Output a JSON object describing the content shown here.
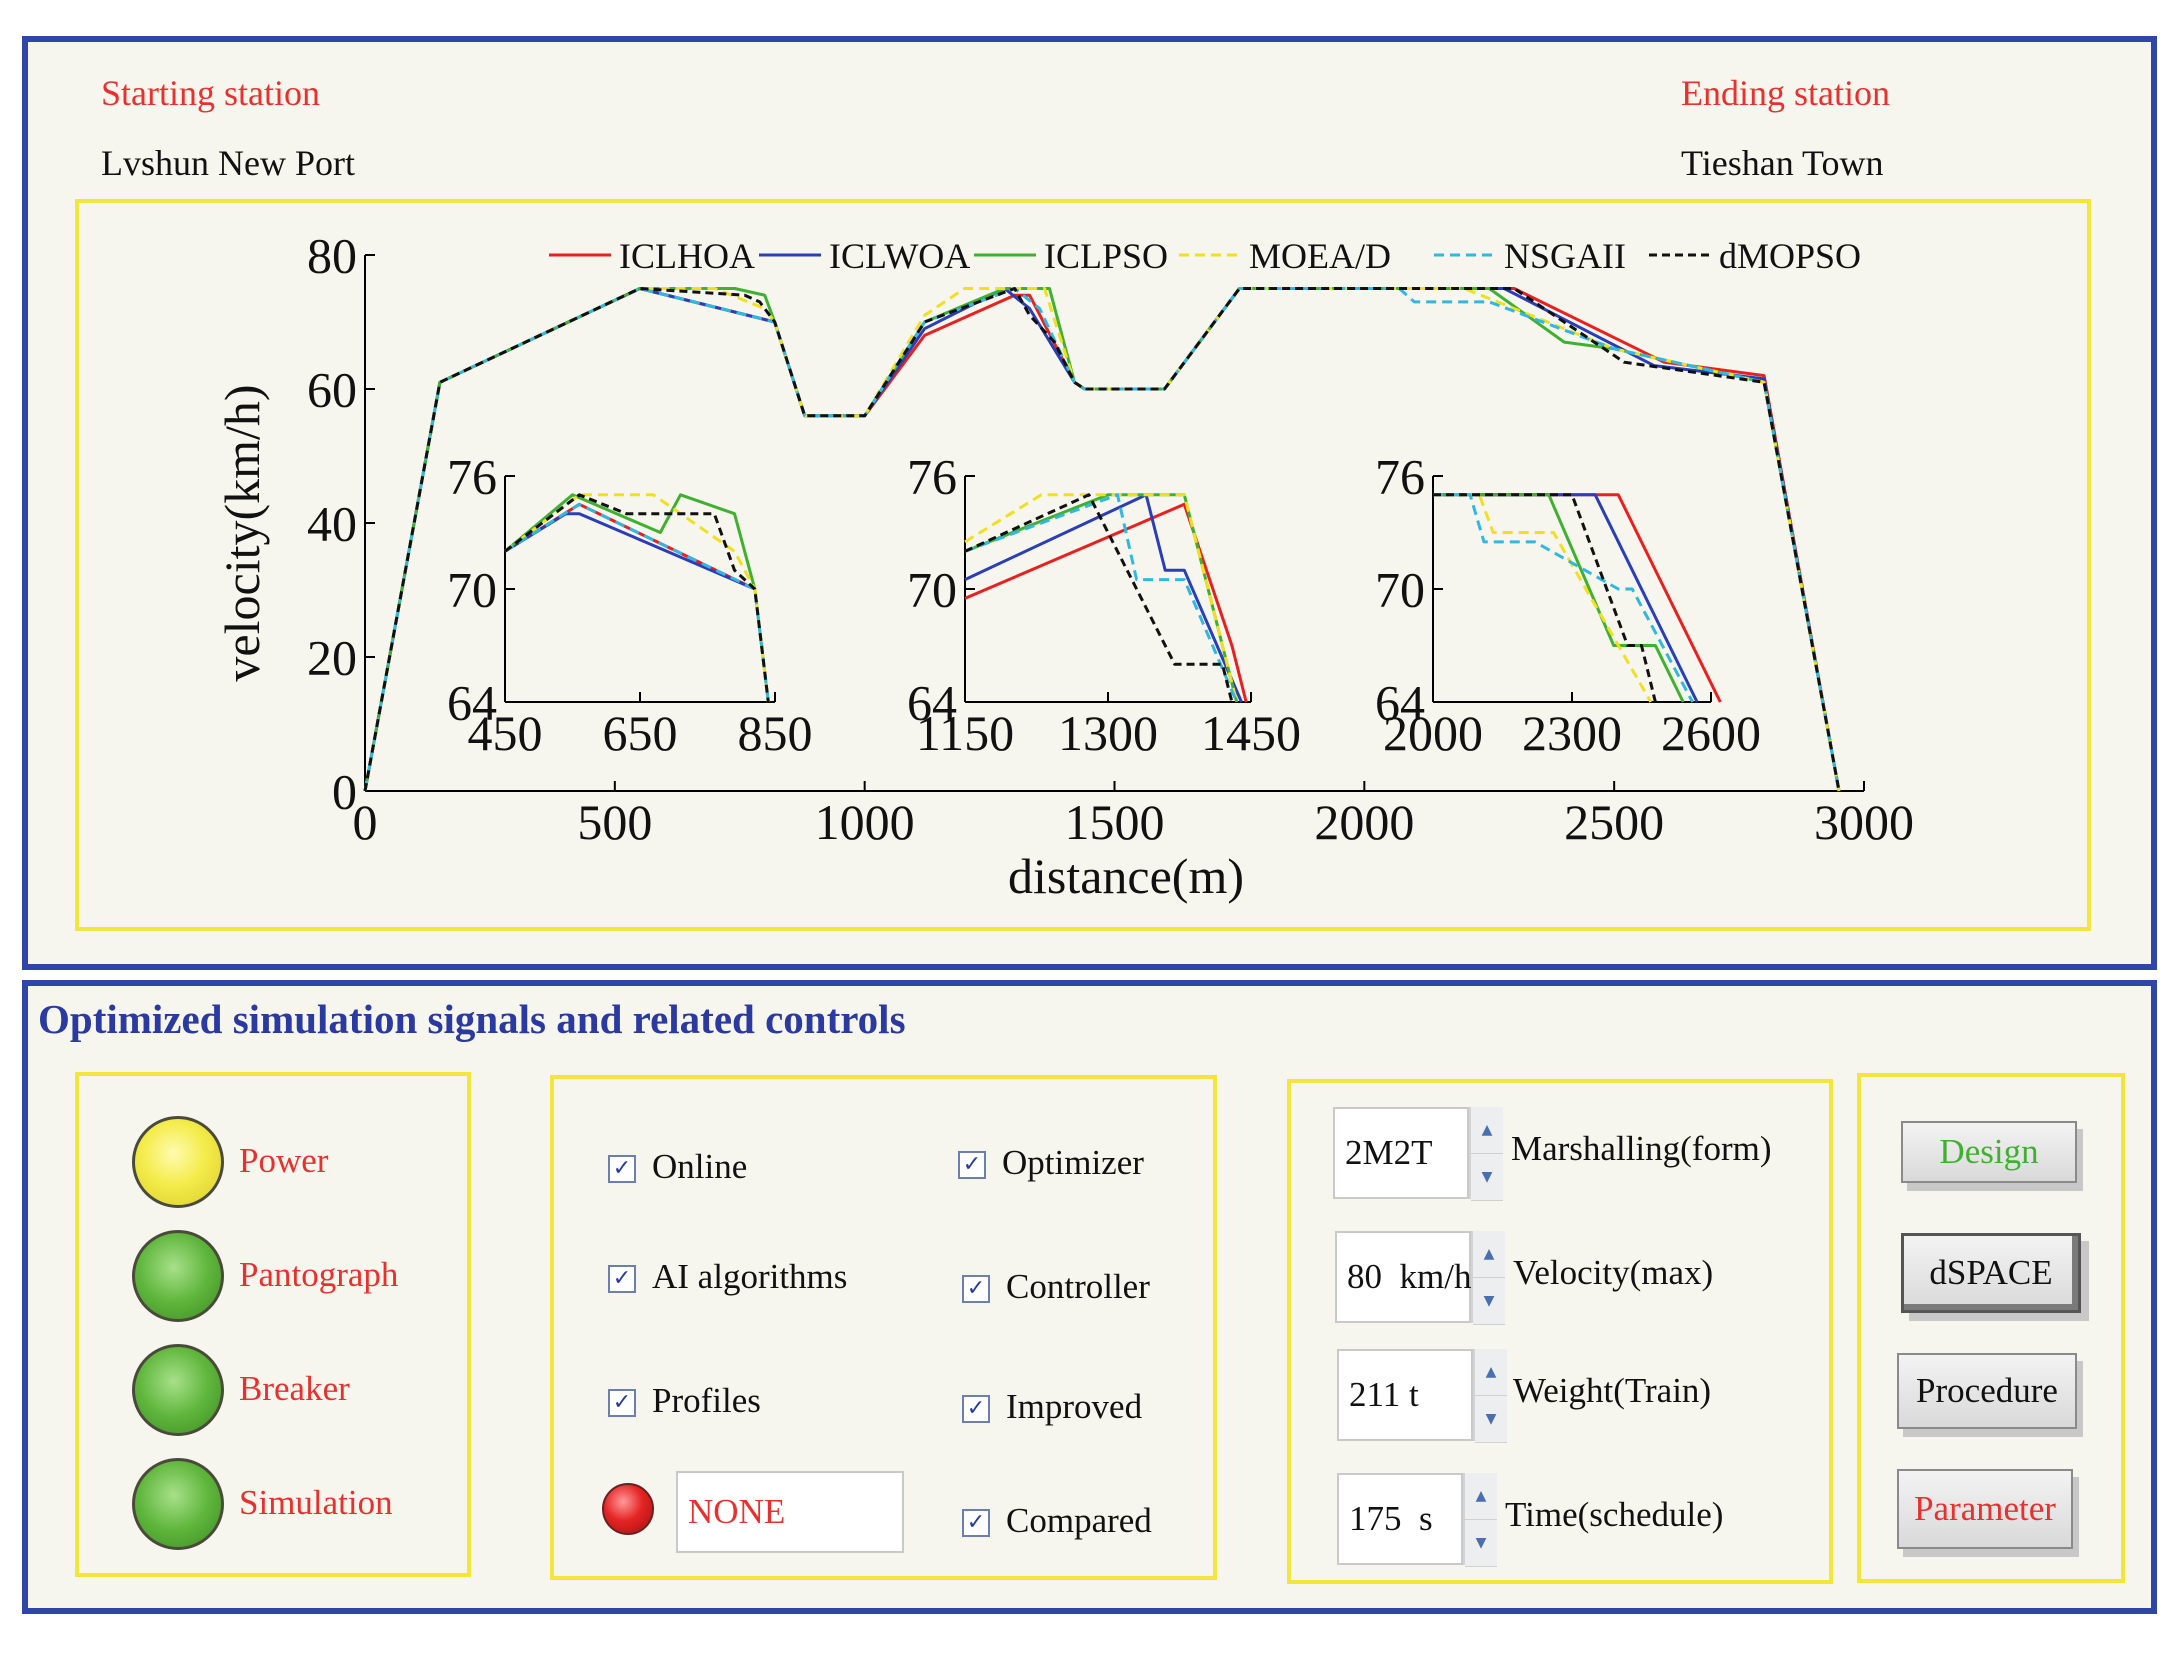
{
  "route": {
    "start_label": "Starting station",
    "start_value": "Lvshun New Port",
    "end_label": "Ending station",
    "end_value": "Tieshan Town"
  },
  "colors": {
    "ICLHOA": "#e82020",
    "ICLWOA": "#2a3eb8",
    "ICLPSO": "#40b030",
    "MOEA/D": "#f0e020",
    "NSGAII": "#30b8e0",
    "dMOPSO": "#111111"
  },
  "chart_data": [
    {
      "type": "line",
      "xlabel": "distance(m)",
      "ylabel": "velocity(km/h)",
      "xlim": [
        0,
        3000
      ],
      "ylim": [
        0,
        80
      ],
      "xticks": [
        "0",
        "500",
        "1000",
        "1500",
        "2000",
        "2500",
        "3000"
      ],
      "yticks": [
        "0",
        "20",
        "40",
        "60",
        "80"
      ],
      "legend": [
        "ICLHOA",
        "ICLWOA",
        "ICLPSO",
        "MOEA/D",
        "NSGAII",
        "dMOPSO"
      ],
      "legend_position": "top",
      "series": [
        {
          "name": "ICLHOA",
          "x": [
            0,
            150,
            550,
            820,
            880,
            1000,
            1120,
            1300,
            1330,
            1420,
            1440,
            1500,
            1600,
            1650,
            1750,
            2300,
            2600,
            2800,
            2950
          ],
          "y": [
            0,
            61,
            75,
            70,
            56,
            56,
            68,
            74,
            74,
            61,
            60,
            60,
            60,
            65,
            75,
            75,
            64,
            62,
            0
          ]
        },
        {
          "name": "ICLWOA",
          "x": [
            0,
            150,
            550,
            820,
            880,
            1000,
            1120,
            1280,
            1330,
            1420,
            1440,
            1500,
            1600,
            1650,
            1750,
            2280,
            2580,
            2800,
            2950
          ],
          "y": [
            0,
            61,
            75,
            70,
            56,
            56,
            69,
            75,
            72,
            61,
            60,
            60,
            60,
            65,
            75,
            75,
            63.5,
            61.5,
            0
          ]
        },
        {
          "name": "ICLPSO",
          "x": [
            0,
            150,
            550,
            740,
            800,
            820,
            880,
            1000,
            1120,
            1280,
            1370,
            1420,
            1440,
            1500,
            1600,
            1650,
            1750,
            2250,
            2400,
            2500,
            2800,
            2950
          ],
          "y": [
            0,
            61,
            75,
            75,
            74,
            70,
            56,
            56,
            70,
            75,
            75,
            61,
            60,
            60,
            60,
            65,
            75,
            75,
            67,
            66,
            61,
            0
          ]
        },
        {
          "name": "MOEA/D",
          "x": [
            0,
            150,
            550,
            700,
            800,
            820,
            880,
            1000,
            1120,
            1200,
            1360,
            1420,
            1440,
            1500,
            1600,
            1650,
            1750,
            2200,
            2500,
            2800,
            2950
          ],
          "y": [
            0,
            61,
            75,
            75,
            72,
            70,
            56,
            56,
            71,
            75,
            75,
            61,
            60,
            60,
            60,
            65,
            75,
            75,
            66,
            61,
            0
          ]
        },
        {
          "name": "NSGAII",
          "x": [
            0,
            150,
            550,
            820,
            880,
            1000,
            1120,
            1300,
            1350,
            1420,
            1440,
            1500,
            1600,
            1650,
            1750,
            2070,
            2100,
            2250,
            2500,
            2800,
            2950
          ],
          "y": [
            0,
            61,
            75,
            70,
            56,
            56,
            70,
            75,
            72,
            61,
            60,
            60,
            60,
            65,
            75,
            75,
            73,
            73,
            66,
            61,
            0
          ]
        },
        {
          "name": "dMOPSO",
          "x": [
            0,
            150,
            550,
            760,
            790,
            820,
            880,
            1000,
            1120,
            1300,
            1330,
            1380,
            1420,
            1440,
            1500,
            1600,
            1650,
            1750,
            2300,
            2520,
            2800,
            2950
          ],
          "y": [
            0,
            61,
            75,
            74,
            73,
            70,
            56,
            56,
            70,
            75,
            71,
            67,
            61,
            60,
            60,
            60,
            65,
            75,
            75,
            64,
            61,
            0
          ]
        }
      ]
    },
    {
      "type": "line",
      "inset": true,
      "xlim": [
        450,
        850
      ],
      "ylim": [
        64,
        76
      ],
      "xticks": [
        "450",
        "650",
        "850"
      ],
      "yticks": [
        "64",
        "70",
        "76"
      ],
      "series": [
        {
          "name": "ICLHOA",
          "x": [
            450,
            560,
            820
          ],
          "y": [
            72,
            74.5,
            70
          ]
        },
        {
          "name": "ICLWOA",
          "x": [
            450,
            540,
            560,
            820
          ],
          "y": [
            72,
            74,
            74,
            70
          ]
        },
        {
          "name": "ICLPSO",
          "x": [
            450,
            550,
            680,
            710,
            790,
            820,
            840
          ],
          "y": [
            72,
            75,
            73,
            75,
            74,
            70,
            64
          ]
        },
        {
          "name": "MOEA/D",
          "x": [
            450,
            560,
            670,
            790,
            820,
            840
          ],
          "y": [
            72,
            75,
            75,
            72,
            70,
            64
          ]
        },
        {
          "name": "NSGAII",
          "x": [
            450,
            560,
            820,
            840
          ],
          "y": [
            72,
            74.5,
            70,
            64
          ]
        },
        {
          "name": "dMOPSO",
          "x": [
            450,
            560,
            630,
            760,
            790,
            820,
            840
          ],
          "y": [
            72,
            75,
            74,
            74,
            71,
            70,
            64
          ]
        }
      ]
    },
    {
      "type": "line",
      "inset": true,
      "xlim": [
        1150,
        1450
      ],
      "ylim": [
        64,
        76
      ],
      "xticks": [
        "1150",
        "1300",
        "1450"
      ],
      "yticks": [
        "64",
        "70",
        "76"
      ],
      "series": [
        {
          "name": "ICLHOA",
          "x": [
            1150,
            1380,
            1430,
            1445
          ],
          "y": [
            69.5,
            74.5,
            67,
            64
          ]
        },
        {
          "name": "ICLWOA",
          "x": [
            1150,
            1340,
            1360,
            1380,
            1440
          ],
          "y": [
            70.5,
            75,
            71,
            71,
            64
          ]
        },
        {
          "name": "ICLPSO",
          "x": [
            1150,
            1300,
            1380,
            1435
          ],
          "y": [
            72,
            75,
            75,
            64
          ]
        },
        {
          "name": "MOEA/D",
          "x": [
            1150,
            1230,
            1380,
            1435
          ],
          "y": [
            72.5,
            75,
            75,
            64
          ]
        },
        {
          "name": "NSGAII",
          "x": [
            1150,
            1310,
            1330,
            1380,
            1435
          ],
          "y": [
            72,
            75,
            70.5,
            70.5,
            64
          ]
        },
        {
          "name": "dMOPSO",
          "x": [
            1150,
            1280,
            1330,
            1370,
            1420,
            1430
          ],
          "y": [
            72,
            75,
            70,
            66,
            66,
            64
          ]
        }
      ]
    },
    {
      "type": "line",
      "inset": true,
      "xlim": [
        2000,
        2600
      ],
      "ylim": [
        64,
        76
      ],
      "xticks": [
        "2000",
        "2300",
        "2600"
      ],
      "yticks": [
        "64",
        "70",
        "76"
      ],
      "series": [
        {
          "name": "ICLHOA",
          "x": [
            2000,
            2400,
            2620
          ],
          "y": [
            75,
            75,
            64
          ]
        },
        {
          "name": "ICLWOA",
          "x": [
            2000,
            2350,
            2570
          ],
          "y": [
            75,
            75,
            64
          ]
        },
        {
          "name": "ICLPSO",
          "x": [
            2000,
            2250,
            2390,
            2480,
            2540
          ],
          "y": [
            75,
            75,
            67,
            67,
            64
          ]
        },
        {
          "name": "MOEA/D",
          "x": [
            2000,
            2100,
            2130,
            2260,
            2470
          ],
          "y": [
            75,
            75,
            73,
            73,
            64
          ]
        },
        {
          "name": "NSGAII",
          "x": [
            2000,
            2080,
            2110,
            2220,
            2400,
            2430,
            2560
          ],
          "y": [
            75,
            75,
            72.5,
            72.5,
            70,
            70,
            64
          ]
        },
        {
          "name": "dMOPSO",
          "x": [
            2000,
            2300,
            2420,
            2450,
            2480
          ],
          "y": [
            75,
            75,
            67,
            67,
            64
          ]
        }
      ]
    }
  ],
  "controls": {
    "section_title": "Optimized simulation signals and related controls",
    "indicators": [
      {
        "label": "Power",
        "state": "yellow"
      },
      {
        "label": "Pantograph",
        "state": "green"
      },
      {
        "label": "Breaker",
        "state": "green"
      },
      {
        "label": "Simulation",
        "state": "green"
      }
    ],
    "checks_left": [
      {
        "label": "Online",
        "checked": true
      },
      {
        "label": "AI algorithms",
        "checked": true
      },
      {
        "label": "Profiles",
        "checked": true
      }
    ],
    "checks_right": [
      {
        "label": "Optimizer",
        "checked": true
      },
      {
        "label": "Controller",
        "checked": true
      },
      {
        "label": "Improved",
        "checked": true
      },
      {
        "label": "Compared",
        "checked": true
      }
    ],
    "status_value": "NONE",
    "spinners": [
      {
        "value": "2M2T",
        "label": "Marshalling(form)"
      },
      {
        "value": "80  km/h",
        "label": "Velocity(max)"
      },
      {
        "value": "211 t",
        "label": "Weight(Train)"
      },
      {
        "value": "175  s",
        "label": "Time(schedule)"
      }
    ],
    "buttons": {
      "design": "Design",
      "dspace": "dSPACE",
      "procedure": "Procedure",
      "parameter": "Parameter"
    }
  }
}
